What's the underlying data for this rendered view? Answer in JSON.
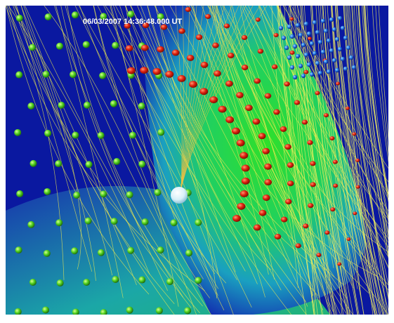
{
  "timestamp": "06/03/2007 14:36:48.000 UT"
}
